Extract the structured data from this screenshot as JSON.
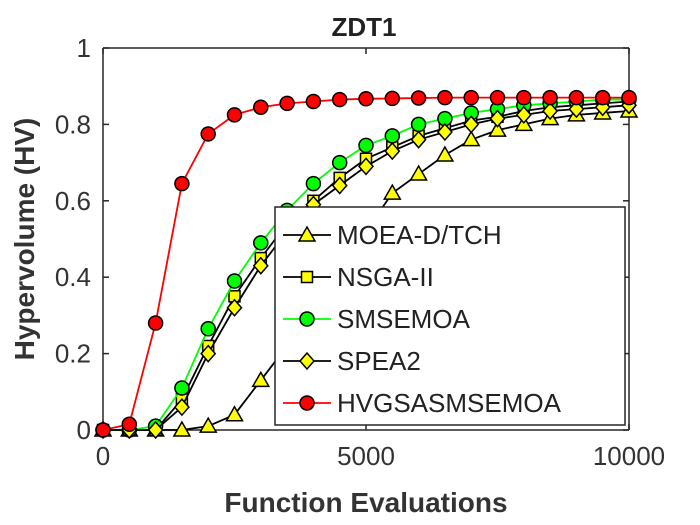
{
  "chart_data": {
    "type": "line",
    "title": "ZDT1",
    "xlabel": "Function Evaluations",
    "ylabel": "Hypervolume (HV)",
    "xlim": [
      0,
      10000
    ],
    "ylim": [
      0,
      1
    ],
    "xticks": [
      0,
      5000,
      10000
    ],
    "xtick_labels": [
      "0",
      "5000",
      "10000"
    ],
    "yticks": [
      0,
      0.2,
      0.4,
      0.6,
      0.8,
      1
    ],
    "ytick_labels": [
      "0",
      "0.2",
      "0.4",
      "0.6",
      "0.8",
      "1"
    ],
    "grid": false,
    "legend_position": "lower-right",
    "x": [
      0,
      500,
      1000,
      1500,
      2000,
      2500,
      3000,
      3500,
      4000,
      4500,
      5000,
      5500,
      6000,
      6500,
      7000,
      7500,
      8000,
      8500,
      9000,
      9500,
      10000
    ],
    "series": [
      {
        "name": "MOEA-D/TCH",
        "marker": "triangle",
        "line_color": "#000000",
        "marker_color": "#ffff00",
        "values": [
          0,
          0,
          0,
          0,
          0.01,
          0.04,
          0.13,
          0.22,
          0.33,
          0.43,
          0.52,
          0.62,
          0.67,
          0.72,
          0.76,
          0.785,
          0.8,
          0.815,
          0.825,
          0.83,
          0.835
        ]
      },
      {
        "name": "NSGA-II",
        "marker": "square",
        "line_color": "#000000",
        "marker_color": "#ffff00",
        "values": [
          0,
          0,
          0,
          0.08,
          0.22,
          0.35,
          0.45,
          0.54,
          0.6,
          0.66,
          0.71,
          0.74,
          0.77,
          0.79,
          0.81,
          0.82,
          0.835,
          0.845,
          0.85,
          0.855,
          0.86
        ]
      },
      {
        "name": "SMSEMOA",
        "marker": "circle",
        "line_color": "#00ff00",
        "marker_color": "#00ff00",
        "values": [
          0,
          0,
          0.01,
          0.11,
          0.265,
          0.39,
          0.49,
          0.575,
          0.645,
          0.7,
          0.745,
          0.77,
          0.8,
          0.815,
          0.83,
          0.84,
          0.85,
          0.855,
          0.86,
          0.865,
          0.865
        ]
      },
      {
        "name": "SPEA2",
        "marker": "diamond",
        "line_color": "#000000",
        "marker_color": "#ffff00",
        "values": [
          0,
          0,
          0,
          0.06,
          0.2,
          0.32,
          0.43,
          0.52,
          0.59,
          0.64,
          0.69,
          0.73,
          0.76,
          0.78,
          0.8,
          0.815,
          0.825,
          0.835,
          0.84,
          0.845,
          0.85
        ]
      },
      {
        "name": "HVGSASMSEMOA",
        "marker": "circle",
        "line_color": "#ff0000",
        "marker_color": "#ff0000",
        "values": [
          0,
          0.015,
          0.28,
          0.645,
          0.775,
          0.825,
          0.845,
          0.855,
          0.86,
          0.865,
          0.867,
          0.868,
          0.869,
          0.87,
          0.87,
          0.87,
          0.87,
          0.87,
          0.87,
          0.87,
          0.87
        ]
      }
    ]
  }
}
